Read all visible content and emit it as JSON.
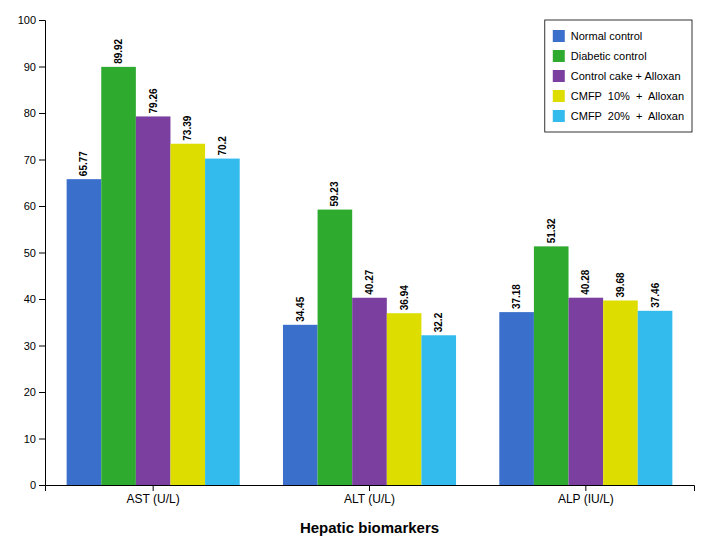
{
  "chart_data": {
    "type": "bar",
    "categories": [
      "AST (U/L)",
      "ALT (U/L)",
      "ALP (IU/L)"
    ],
    "series": [
      {
        "name": "Normal control",
        "color": "#3B6FCC",
        "values": [
          65.77,
          34.45,
          37.18
        ]
      },
      {
        "name": "Diabetic control",
        "color": "#2EAA2E",
        "values": [
          89.92,
          59.23,
          51.32
        ]
      },
      {
        "name": "Control cake + Alloxan",
        "color": "#7B3FA0",
        "values": [
          79.26,
          40.27,
          40.28
        ]
      },
      {
        "name": "CMFP  10%  +  Alloxan",
        "color": "#DDDD00",
        "values": [
          73.39,
          36.94,
          39.68
        ]
      },
      {
        "name": "CMFP  20%  +  Alloxan",
        "color": "#33BBEE",
        "values": [
          70.2,
          32.2,
          37.46
        ]
      }
    ],
    "xlabel": "Hepatic biomarkers",
    "ylim": [
      0,
      100
    ],
    "yticks": [
      0,
      10,
      20,
      30,
      40,
      50,
      60,
      70,
      80,
      90,
      100
    ],
    "data_labels": true,
    "legend": "upper right",
    "grid": false
  }
}
